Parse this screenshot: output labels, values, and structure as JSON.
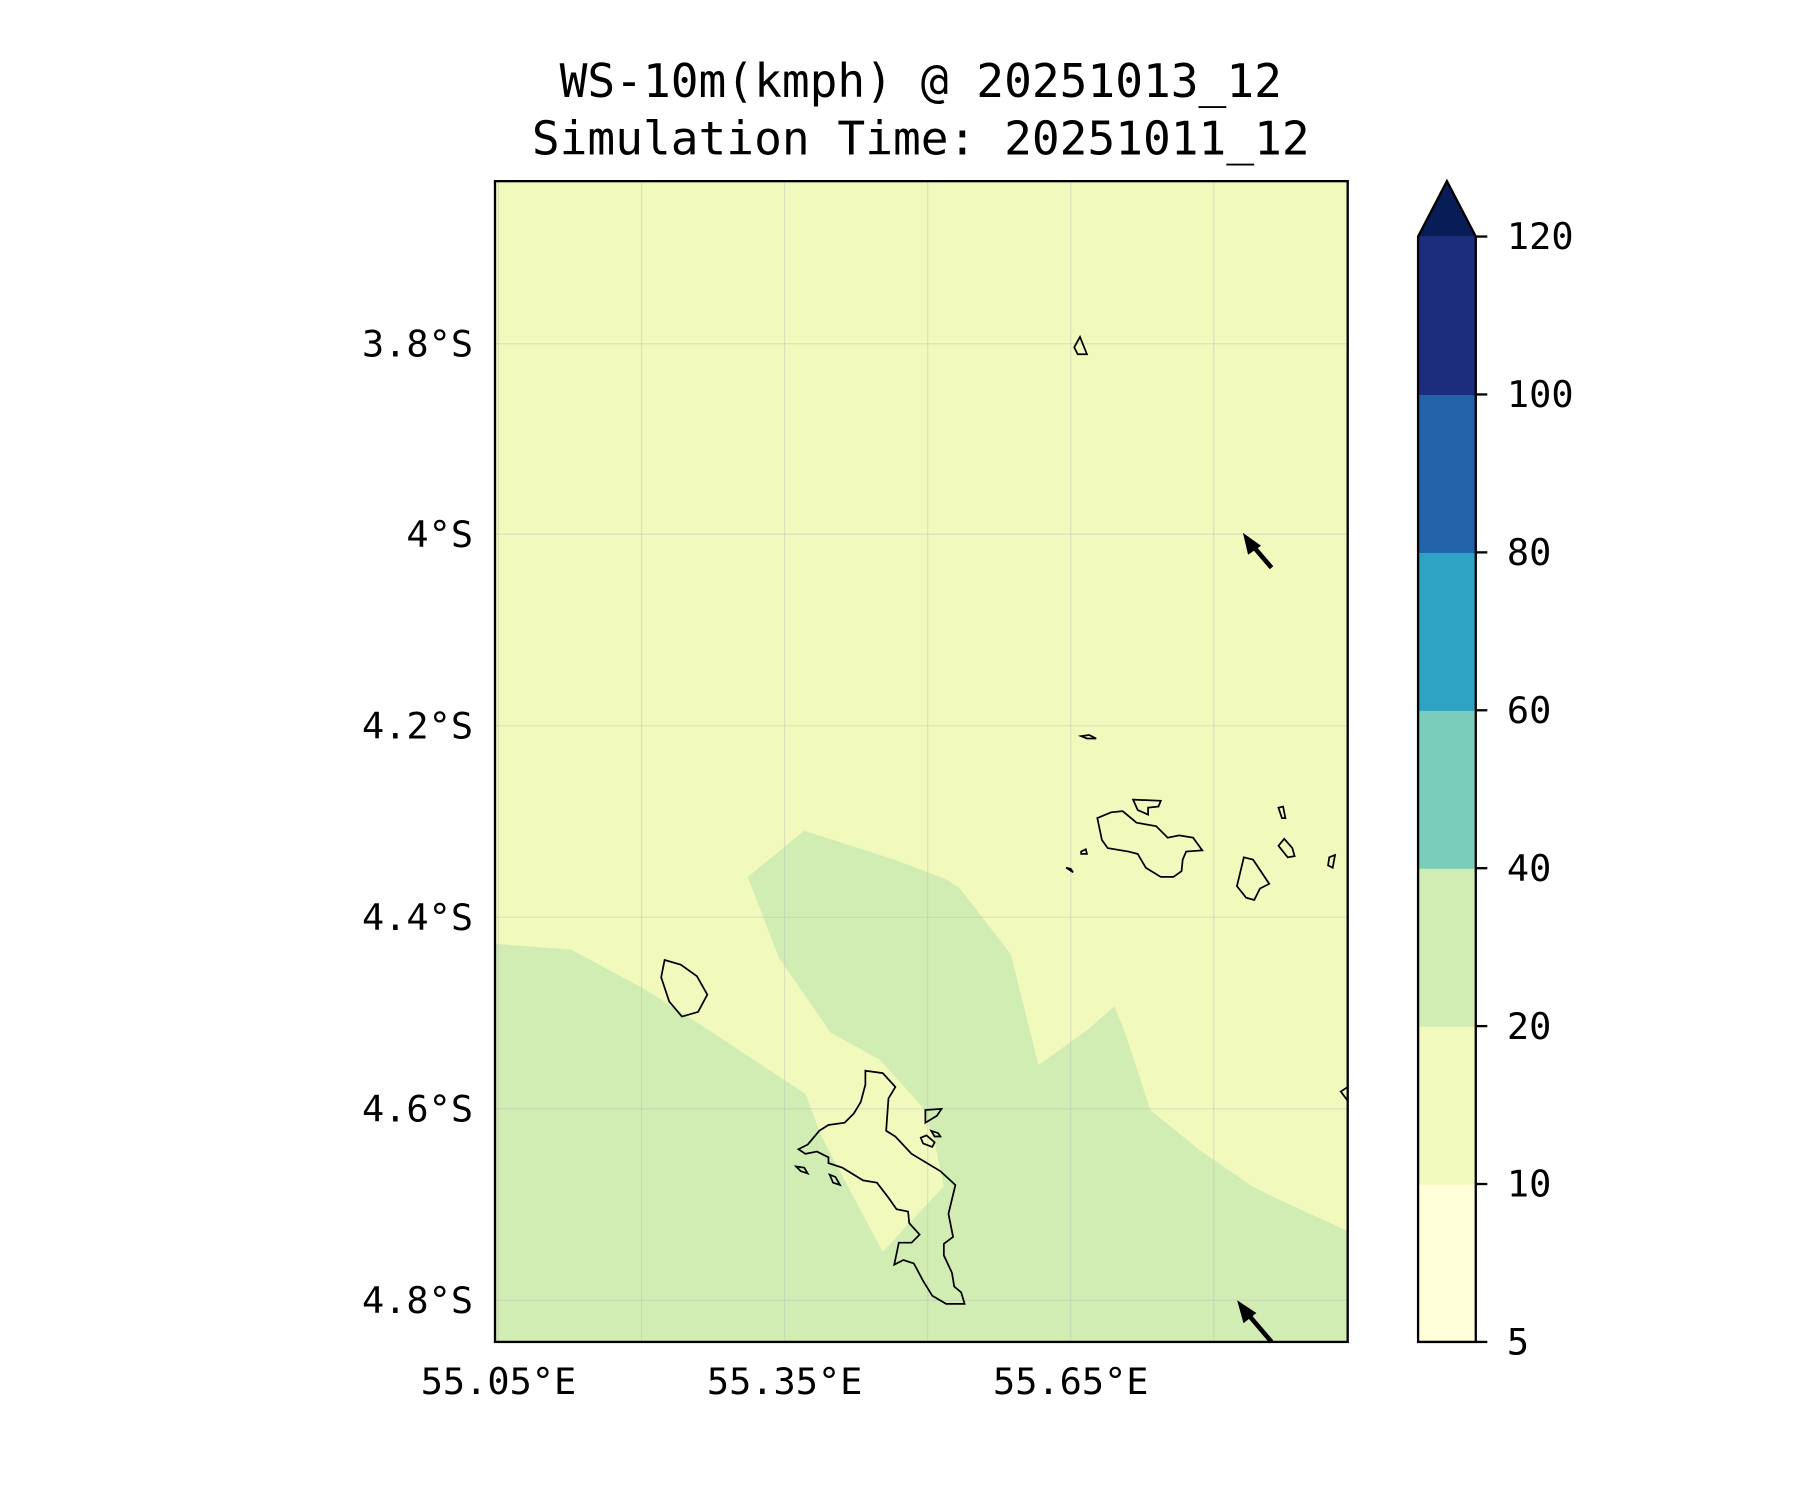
{
  "chart_data": {
    "type": "heatmap",
    "title_line1": "WS-10m(kmph) @ 20251013_12",
    "title_line2": "Simulation Time: 20251011_12",
    "x_ticks": [
      "55.05°E",
      "55.35°E",
      "55.65°E"
    ],
    "y_ticks": [
      "3.8°S",
      "4°S",
      "4.2°S",
      "4.4°S",
      "4.6°S",
      "4.8°S"
    ],
    "colorbar": {
      "levels": [
        5,
        10,
        20,
        40,
        60,
        80,
        100,
        120
      ],
      "labels": [
        "5",
        "10",
        "20",
        "40",
        "60",
        "80",
        "100",
        "120"
      ],
      "colors": [
        "#ffffd9",
        "#f1f9bd",
        "#d2edb3",
        "#7accbb",
        "#2fa3c4",
        "#2262a9",
        "#1d2d7d"
      ],
      "extend_color": "#081d58",
      "extend": "max"
    },
    "field_summary": {
      "background_range_kmph": "10-20",
      "southern_region_range_kmph": "20-40"
    }
  }
}
